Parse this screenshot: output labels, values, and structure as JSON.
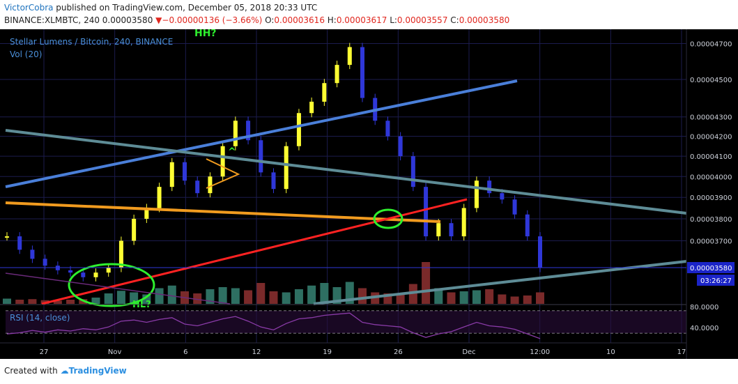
{
  "header": {
    "author": "VictorCobra",
    "published_text": " published on TradingView.com, December 05, 2018 20:33 UTC",
    "symbol": "BINANCE:XLMBTC, 240",
    "last": "0.00003580",
    "change_arrow": "▼",
    "change": "−0.00000136 (−3.66%)",
    "ohlc": {
      "o_label": " O:",
      "o": "0.00003616",
      "h_label": " H:",
      "h": "0.00003617",
      "l_label": " L:",
      "l": "0.00003557",
      "c_label": " C:",
      "c": "0.00003580"
    }
  },
  "legend": {
    "title": "Stellar Lumens / Bitcoin, 240, BINANCE",
    "volume": "Vol (20)",
    "rsi": "RSI (14, close)"
  },
  "annotations": {
    "hh": "HH?",
    "hl": "HL?"
  },
  "price_labels": {
    "last_price": "0.00003580",
    "countdown": "03:26:27"
  },
  "footer": {
    "created_with": "Created with",
    "brand": "TradingView"
  },
  "colors": {
    "background": "#000000",
    "bull_candle": "#ffff33",
    "bear_candle": "#2f37d8",
    "vol_up": "#2e6f62",
    "vol_down": "#7a2a2a",
    "rsi_line": "#8a3ba8",
    "trend_blue": "#4a7fd9",
    "trend_gray": "#5e8c96",
    "trend_orange": "#f19b1f",
    "trend_red": "#ff2222",
    "circle_green": "#2ef02e"
  },
  "chart_data": {
    "type": "line",
    "title": "Stellar Lumens / Bitcoin, 240, BINANCE",
    "x_tick_labels": [
      "27",
      "Nov",
      "6",
      "12",
      "19",
      "26",
      "Dec",
      "12:00",
      "10",
      "17"
    ],
    "y_tick_labels": [
      "0.00004700",
      "0.00004500",
      "0.00004300",
      "0.00004200",
      "0.00004100",
      "0.00004000",
      "0.00003900",
      "0.00003800",
      "0.00003700"
    ],
    "y_scale": "log",
    "ylim": [
      3.48e-05,
      4.75e-05
    ],
    "series": [
      {
        "name": "Stellar Lumens / Bitcoin, 240, BINANCE",
        "x": [
          "Oct 24",
          "Oct 25",
          "Oct 26",
          "Oct 27",
          "Oct 28",
          "Oct 29",
          "Oct 30",
          "Oct 31",
          "Nov 1",
          "Nov 2",
          "Nov 3",
          "Nov 4",
          "Nov 5",
          "Nov 6",
          "Nov 7",
          "Nov 8",
          "Nov 9",
          "Nov 10",
          "Nov 11",
          "Nov 12",
          "Nov 13",
          "Nov 14",
          "Nov 15",
          "Nov 16",
          "Nov 17",
          "Nov 18",
          "Nov 19",
          "Nov 20",
          "Nov 21",
          "Nov 22",
          "Nov 23",
          "Nov 24",
          "Nov 25",
          "Nov 26",
          "Nov 27",
          "Nov 28",
          "Nov 29",
          "Nov 30",
          "Dec 1",
          "Dec 2",
          "Dec 3",
          "Dec 4",
          "Dec 5"
        ],
        "values": [
          3.72e-05,
          3.66e-05,
          3.62e-05,
          3.59e-05,
          3.57e-05,
          3.56e-05,
          3.54e-05,
          3.56e-05,
          3.58e-05,
          3.7e-05,
          3.8e-05,
          3.85e-05,
          3.95e-05,
          4.07e-05,
          3.98e-05,
          3.92e-05,
          4e-05,
          4.15e-05,
          4.28e-05,
          4.18e-05,
          4.02e-05,
          3.94e-05,
          4.15e-05,
          4.32e-05,
          4.38e-05,
          4.48e-05,
          4.58e-05,
          4.68e-05,
          4.4e-05,
          4.28e-05,
          4.2e-05,
          4.1e-05,
          3.95e-05,
          3.72e-05,
          3.78e-05,
          3.72e-05,
          3.85e-05,
          3.98e-05,
          3.92e-05,
          3.89e-05,
          3.82e-05,
          3.72e-05,
          3.58e-05
        ]
      }
    ],
    "volume": {
      "name": "Vol (20)",
      "x": [
        "Oct 24",
        "Oct 25",
        "Oct 26",
        "Oct 27",
        "Oct 28",
        "Oct 29",
        "Oct 30",
        "Oct 31",
        "Nov 1",
        "Nov 2",
        "Nov 3",
        "Nov 4",
        "Nov 5",
        "Nov 6",
        "Nov 7",
        "Nov 8",
        "Nov 9",
        "Nov 10",
        "Nov 11",
        "Nov 12",
        "Nov 13",
        "Nov 14",
        "Nov 15",
        "Nov 16",
        "Nov 17",
        "Nov 18",
        "Nov 19",
        "Nov 20",
        "Nov 21",
        "Nov 22",
        "Nov 23",
        "Nov 24",
        "Nov 25",
        "Nov 26",
        "Nov 27",
        "Nov 28",
        "Nov 29",
        "Nov 30",
        "Dec 1",
        "Dec 2",
        "Dec 3",
        "Dec 4",
        "Dec 5"
      ],
      "values": [
        10,
        8,
        9,
        7,
        6,
        8,
        9,
        12,
        20,
        25,
        22,
        18,
        30,
        35,
        24,
        20,
        28,
        32,
        30,
        26,
        40,
        24,
        22,
        28,
        35,
        40,
        32,
        42,
        30,
        22,
        20,
        18,
        38,
        80,
        30,
        22,
        24,
        26,
        28,
        18,
        14,
        16,
        22
      ]
    },
    "rsi": {
      "name": "RSI (14, close)",
      "tick_labels": [
        "80.0000",
        "40.0000"
      ],
      "ylim": [
        25,
        85
      ],
      "levels": [
        70,
        30
      ],
      "values": [
        38,
        40,
        44,
        41,
        45,
        43,
        47,
        45,
        50,
        60,
        62,
        58,
        63,
        66,
        55,
        52,
        58,
        64,
        68,
        60,
        50,
        45,
        56,
        64,
        66,
        70,
        72,
        74,
        58,
        54,
        52,
        50,
        40,
        32,
        38,
        42,
        50,
        58,
        52,
        50,
        46,
        38,
        30
      ]
    }
  }
}
